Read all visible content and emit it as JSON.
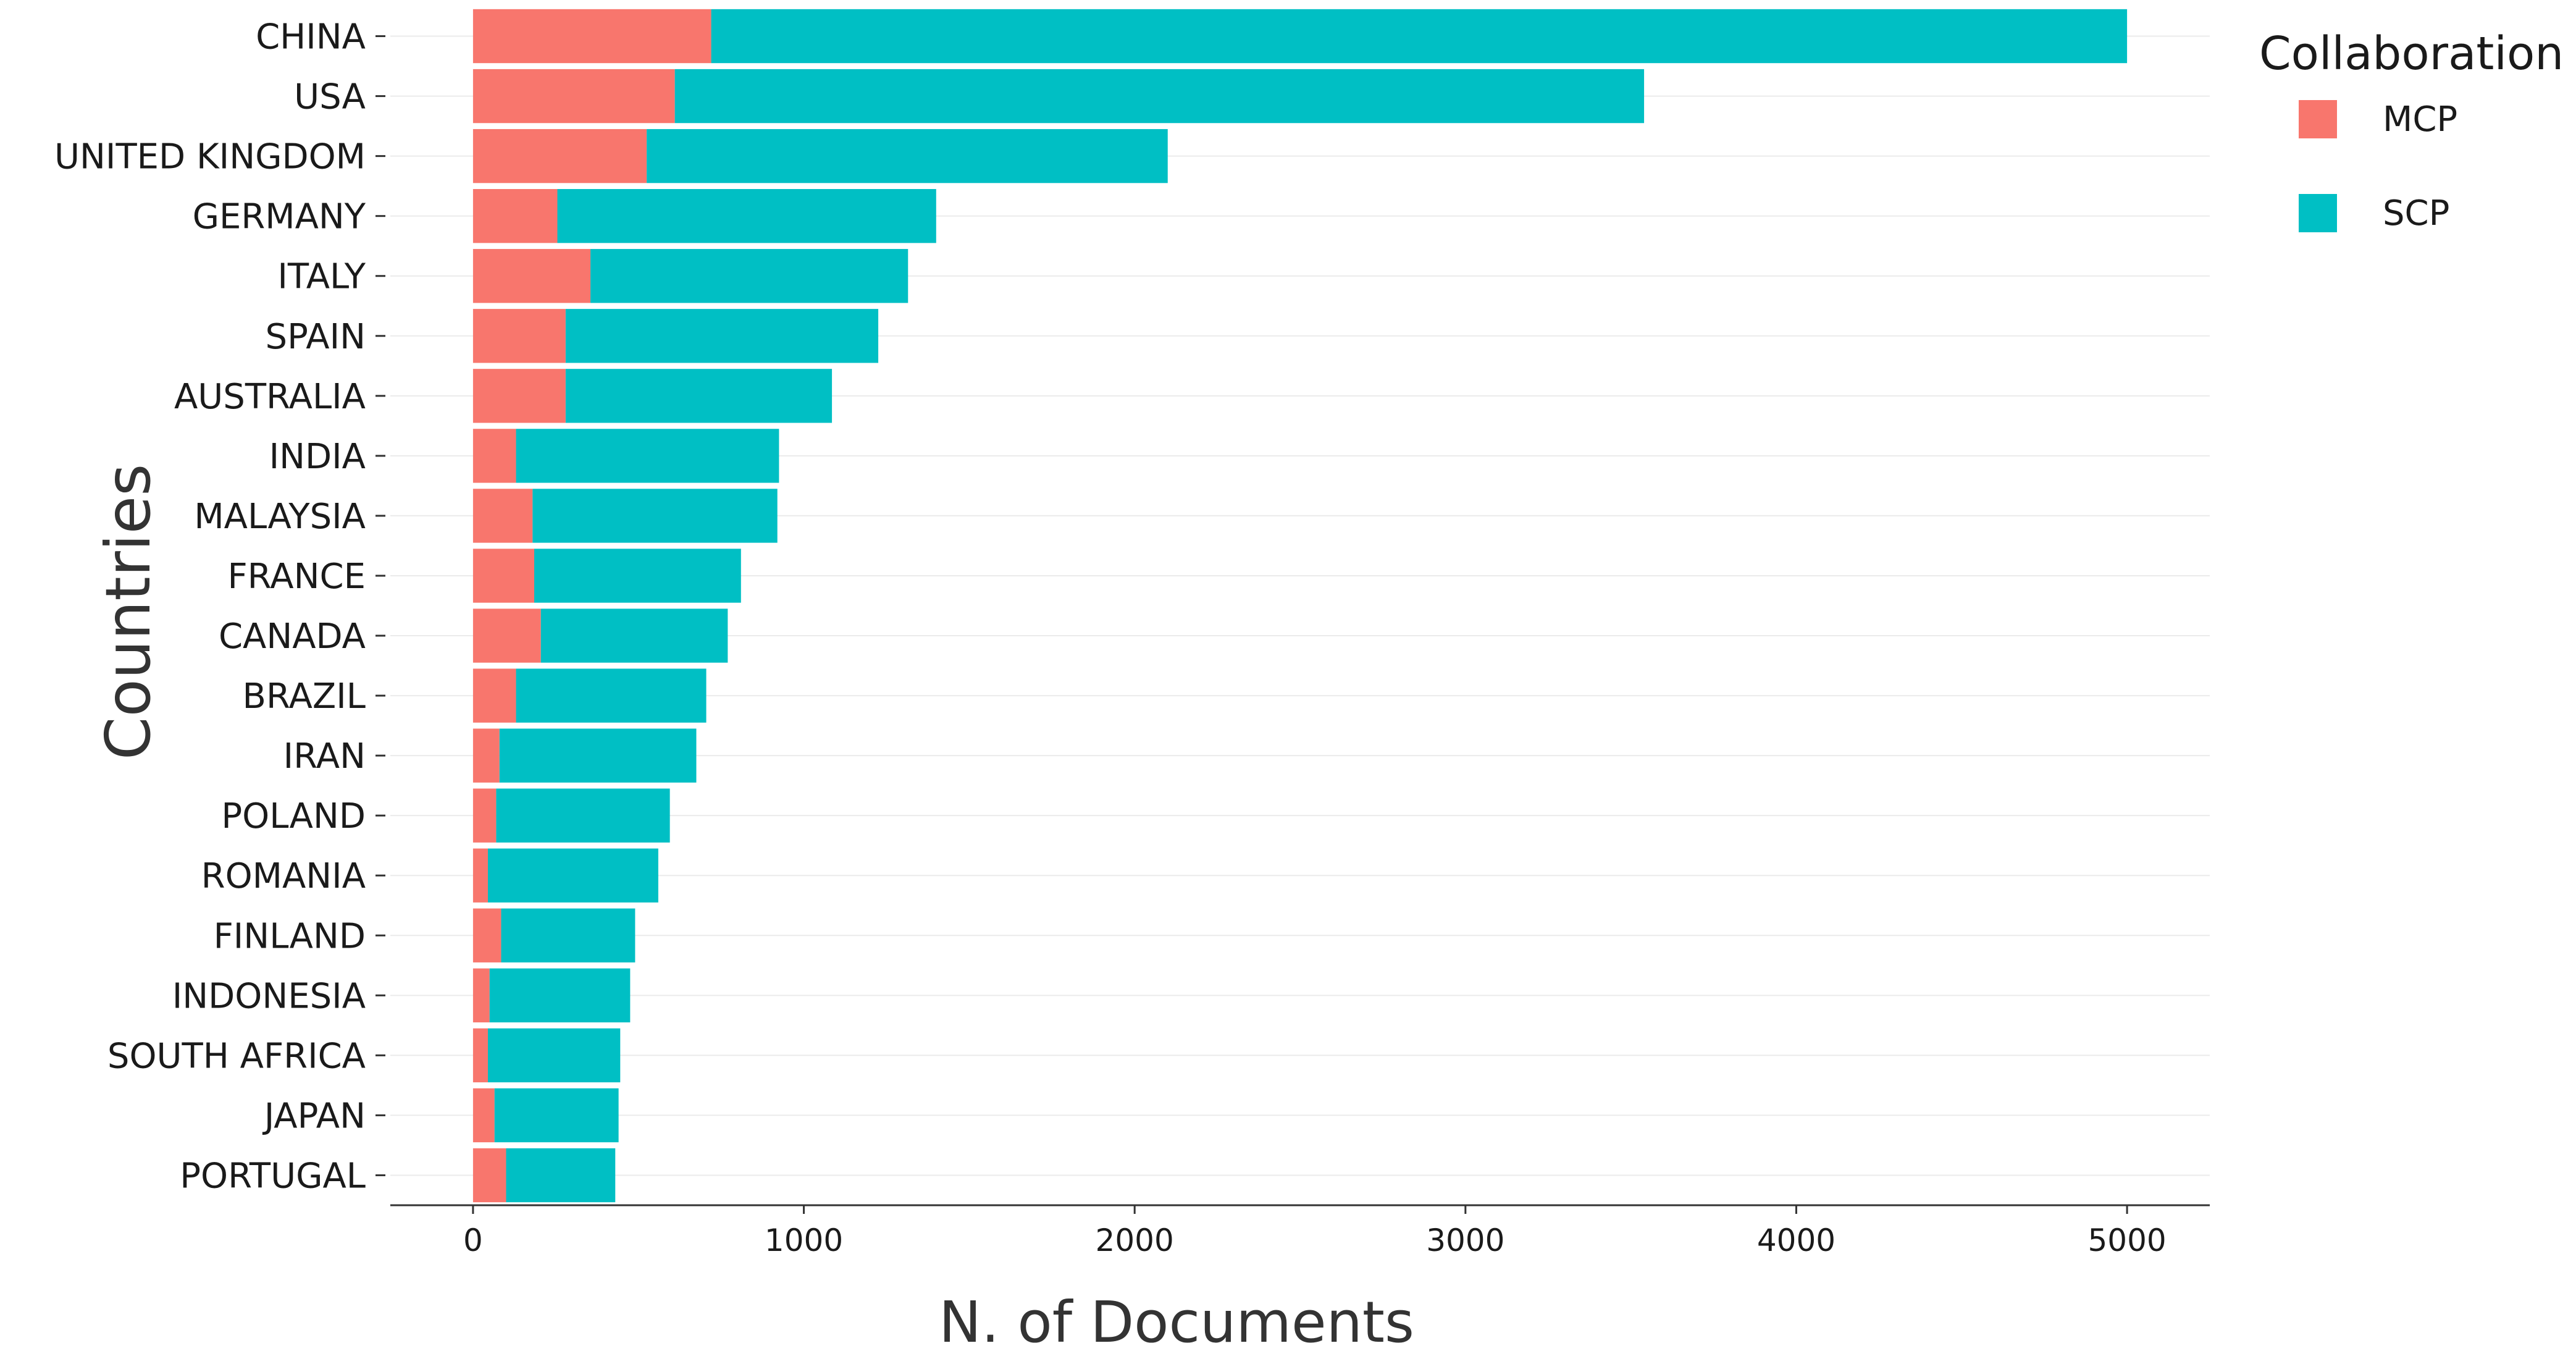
{
  "chart_data": {
    "type": "bar",
    "orientation": "horizontal",
    "stacked": true,
    "categories": [
      "CHINA",
      "USA",
      "UNITED KINGDOM",
      "GERMANY",
      "ITALY",
      "SPAIN",
      "AUSTRALIA",
      "INDIA",
      "MALAYSIA",
      "FRANCE",
      "CANADA",
      "BRAZIL",
      "IRAN",
      "POLAND",
      "ROMANIA",
      "FINLAND",
      "INDONESIA",
      "SOUTH AFRICA",
      "JAPAN",
      "PORTUGAL"
    ],
    "series": [
      {
        "name": "MCP",
        "color": "#F8766D",
        "values": [
          720,
          610,
          525,
          255,
          355,
          280,
          280,
          130,
          180,
          185,
          205,
          130,
          80,
          70,
          45,
          85,
          50,
          45,
          65,
          100
        ]
      },
      {
        "name": "SCP",
        "color": "#00BFC4",
        "values": [
          4280,
          2930,
          1575,
          1145,
          960,
          945,
          805,
          795,
          740,
          625,
          565,
          575,
          595,
          525,
          515,
          405,
          425,
          400,
          375,
          330
        ]
      }
    ],
    "xlabel": "N. of Documents",
    "ylabel": "Countries",
    "xlim": [
      -250,
      5250
    ],
    "xticks": [
      0,
      1000,
      2000,
      3000,
      4000,
      5000
    ],
    "grid": true,
    "legend": {
      "title": "Collaboration",
      "position": "right-top",
      "entries": [
        "MCP",
        "SCP"
      ]
    }
  }
}
